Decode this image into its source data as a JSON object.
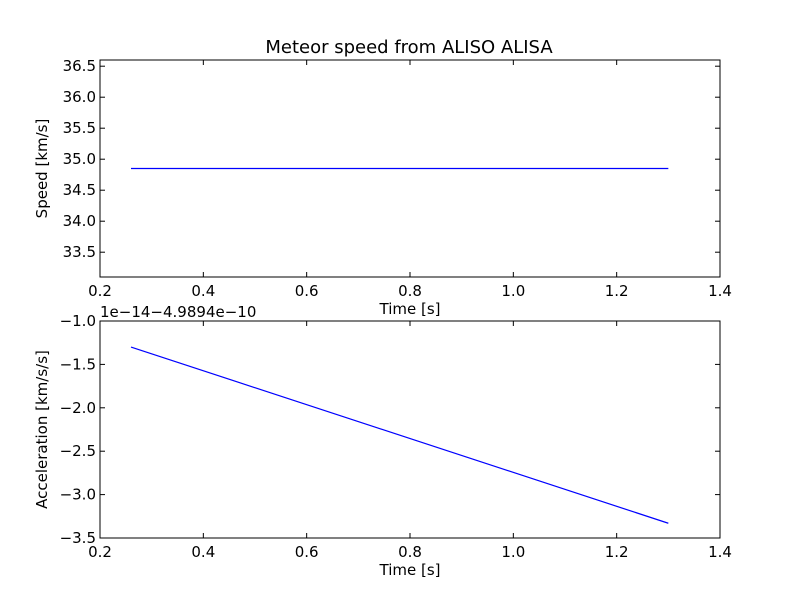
{
  "figure": {
    "title": "Meteor speed from  ALISO ALISA"
  },
  "chart_data": [
    {
      "type": "line",
      "title": "Meteor speed from  ALISO ALISA",
      "xlabel": "Time [s]",
      "ylabel": "Speed [km/s]",
      "xlim": [
        0.2,
        1.4
      ],
      "ylim": [
        33.1,
        36.6
      ],
      "xticks": [
        0.2,
        0.4,
        0.6,
        0.8,
        1.0,
        1.2,
        1.4
      ],
      "xtick_labels": [
        "0.2",
        "0.4",
        "0.6",
        "0.8",
        "1.0",
        "1.2",
        "1.4"
      ],
      "yticks": [
        33.5,
        34.0,
        34.5,
        35.0,
        35.5,
        36.0,
        36.5
      ],
      "ytick_labels": [
        "33.5",
        "34.0",
        "34.5",
        "35.0",
        "35.5",
        "36.0",
        "36.5"
      ],
      "grid": false,
      "series": [
        {
          "color": "#0000ff",
          "x": [
            0.26,
            1.3
          ],
          "y": [
            34.85,
            34.85
          ]
        }
      ]
    },
    {
      "type": "line",
      "title": "",
      "xlabel": "Time [s]",
      "ylabel": "Acceleration [km/s/s]",
      "offset_text": "1e−14−4.9894e−10",
      "xlim": [
        0.2,
        1.4
      ],
      "ylim": [
        -3.5,
        -1.0
      ],
      "xticks": [
        0.2,
        0.4,
        0.6,
        0.8,
        1.0,
        1.2,
        1.4
      ],
      "xtick_labels": [
        "0.2",
        "0.4",
        "0.6",
        "0.8",
        "1.0",
        "1.2",
        "1.4"
      ],
      "yticks": [
        -3.5,
        -3.0,
        -2.5,
        -2.0,
        -1.5,
        -1.0
      ],
      "ytick_labels": [
        "−3.5",
        "−3.0",
        "−2.5",
        "−2.0",
        "−1.5",
        "−1.0"
      ],
      "grid": false,
      "series": [
        {
          "color": "#0000ff",
          "x": [
            0.26,
            1.3
          ],
          "y": [
            -1.3,
            -3.33
          ]
        }
      ]
    }
  ]
}
